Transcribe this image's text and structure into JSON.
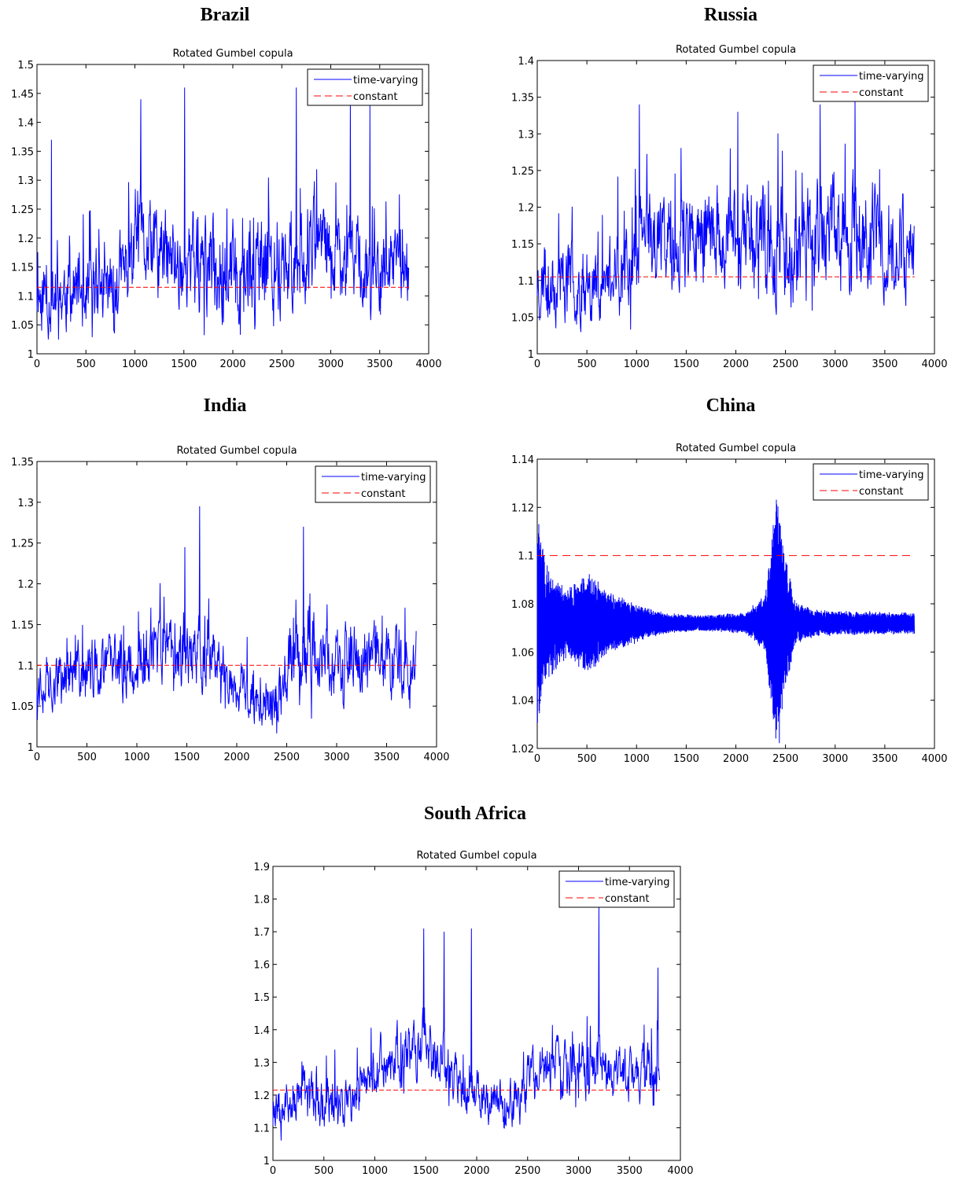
{
  "colors": {
    "time_varying": "#0000ff",
    "constant": "#ff0000",
    "axis": "#000000"
  },
  "chart_data": [
    {
      "country": "Brazil",
      "type": "line",
      "title": "Rotated Gumbel copula",
      "xlim": [
        0,
        4000
      ],
      "ylim": [
        1,
        1.5
      ],
      "xticks": [
        0,
        500,
        1000,
        1500,
        2000,
        2500,
        3000,
        3500,
        4000
      ],
      "yticks": [
        1,
        1.05,
        1.1,
        1.15,
        1.2,
        1.25,
        1.3,
        1.35,
        1.4,
        1.45,
        1.5
      ],
      "ytick_labels": [
        "1",
        "1.05",
        "1.1",
        "1.15",
        "1.2",
        "1.25",
        "1.3",
        "1.35",
        "1.4",
        "1.45",
        "1.5"
      ],
      "xtick_labels": [
        "0",
        "500",
        "1000",
        "1500",
        "2000",
        "2500",
        "3000",
        "3500",
        "4000"
      ],
      "legend_position": "top-right",
      "series": [
        {
          "name": "time-varying",
          "style": "solid",
          "n": 3800,
          "seed": 11,
          "segments": [
            [
              0,
              1.1,
              0.06
            ],
            [
              800,
              1.11,
              0.07
            ],
            [
              1000,
              1.18,
              0.07
            ],
            [
              1600,
              1.15,
              0.08
            ],
            [
              2300,
              1.14,
              0.08
            ],
            [
              2900,
              1.18,
              0.07
            ],
            [
              3400,
              1.15,
              0.07
            ],
            [
              3800,
              1.14,
              0.06
            ]
          ],
          "peaks": [
            [
              150,
              1.37
            ],
            [
              1060,
              1.44
            ],
            [
              1510,
              1.46
            ],
            [
              2650,
              1.46
            ],
            [
              3200,
              1.44
            ],
            [
              3400,
              1.43
            ]
          ]
        },
        {
          "name": "constant",
          "style": "dashed",
          "value": 1.115
        }
      ]
    },
    {
      "country": "Russia",
      "type": "line",
      "title": "Rotated Gumbel copula",
      "xlim": [
        0,
        4000
      ],
      "ylim": [
        1,
        1.4
      ],
      "xticks": [
        0,
        500,
        1000,
        1500,
        2000,
        2500,
        3000,
        3500,
        4000
      ],
      "yticks": [
        1,
        1.05,
        1.1,
        1.15,
        1.2,
        1.25,
        1.3,
        1.35,
        1.4
      ],
      "ytick_labels": [
        "1",
        "1.05",
        "1.1",
        "1.15",
        "1.2",
        "1.25",
        "1.3",
        "1.35",
        "1.4"
      ],
      "xtick_labels": [
        "0",
        "500",
        "1000",
        "1500",
        "2000",
        "2500",
        "3000",
        "3500",
        "4000"
      ],
      "legend_position": "top-right",
      "series": [
        {
          "name": "time-varying",
          "style": "solid",
          "n": 3800,
          "seed": 23,
          "segments": [
            [
              0,
              1.1,
              0.05
            ],
            [
              800,
              1.1,
              0.05
            ],
            [
              1000,
              1.15,
              0.06
            ],
            [
              1800,
              1.16,
              0.06
            ],
            [
              2400,
              1.15,
              0.07
            ],
            [
              3000,
              1.17,
              0.07
            ],
            [
              3800,
              1.15,
              0.06
            ]
          ],
          "peaks": [
            [
              1030,
              1.34
            ],
            [
              2020,
              1.33
            ],
            [
              2850,
              1.34
            ],
            [
              3200,
              1.35
            ]
          ]
        },
        {
          "name": "constant",
          "style": "dashed",
          "value": 1.105
        }
      ]
    },
    {
      "country": "India",
      "type": "line",
      "title": "Rotated Gumbel copula",
      "xlim": [
        0,
        4000
      ],
      "ylim": [
        1,
        1.35
      ],
      "xticks": [
        0,
        500,
        1000,
        1500,
        2000,
        2500,
        3000,
        3500,
        4000
      ],
      "yticks": [
        1,
        1.05,
        1.1,
        1.15,
        1.2,
        1.25,
        1.3,
        1.35
      ],
      "ytick_labels": [
        "1",
        "1.05",
        "1.1",
        "1.15",
        "1.2",
        "1.25",
        "1.3",
        "1.35"
      ],
      "xtick_labels": [
        "0",
        "500",
        "1000",
        "1500",
        "2000",
        "2500",
        "3000",
        "3500",
        "4000"
      ],
      "legend_position": "top-right",
      "series": [
        {
          "name": "time-varying",
          "style": "solid",
          "n": 3800,
          "seed": 37,
          "segments": [
            [
              0,
              1.08,
              0.03
            ],
            [
              1200,
              1.11,
              0.04
            ],
            [
              1700,
              1.11,
              0.04
            ],
            [
              2100,
              1.06,
              0.03
            ],
            [
              2400,
              1.05,
              0.03
            ],
            [
              2600,
              1.13,
              0.05
            ],
            [
              3000,
              1.1,
              0.04
            ],
            [
              3800,
              1.11,
              0.04
            ]
          ],
          "peaks": [
            [
              1630,
              1.295
            ],
            [
              2670,
              1.27
            ],
            [
              1480,
              1.245
            ]
          ]
        },
        {
          "name": "constant",
          "style": "dashed",
          "value": 1.1
        }
      ]
    },
    {
      "country": "China",
      "type": "line",
      "title": "Rotated Gumbel copula",
      "xlim": [
        0,
        4000
      ],
      "ylim": [
        1.02,
        1.14
      ],
      "xticks": [
        0,
        500,
        1000,
        1500,
        2000,
        2500,
        3000,
        3500,
        4000
      ],
      "yticks": [
        1.02,
        1.04,
        1.06,
        1.08,
        1.1,
        1.12,
        1.14
      ],
      "ytick_labels": [
        "1.02",
        "1.04",
        "1.06",
        "1.08",
        "1.1",
        "1.12",
        "1.14"
      ],
      "xtick_labels": [
        "0",
        "500",
        "1000",
        "1500",
        "2000",
        "2500",
        "3000",
        "3500",
        "4000"
      ],
      "legend_position": "top-right",
      "series": [
        {
          "name": "time-varying",
          "style": "solid",
          "n": 3800,
          "seed": 41,
          "kind": "oscillation",
          "center": 1.072,
          "envelope": [
            [
              0,
              0.04
            ],
            [
              100,
              0.022
            ],
            [
              300,
              0.013
            ],
            [
              500,
              0.02
            ],
            [
              700,
              0.012
            ],
            [
              1100,
              0.006
            ],
            [
              1300,
              0.004
            ],
            [
              1600,
              0.003
            ],
            [
              2100,
              0.004
            ],
            [
              2300,
              0.012
            ],
            [
              2420,
              0.052
            ],
            [
              2480,
              0.03
            ],
            [
              2600,
              0.008
            ],
            [
              2800,
              0.005
            ],
            [
              3800,
              0.004
            ]
          ]
        },
        {
          "name": "constant",
          "style": "dashed",
          "value": 1.1
        }
      ]
    },
    {
      "country": "South Africa",
      "type": "line",
      "title": "Rotated Gumbel copula",
      "xlim": [
        0,
        4000
      ],
      "ylim": [
        1,
        1.9
      ],
      "xticks": [
        0,
        500,
        1000,
        1500,
        2000,
        2500,
        3000,
        3500,
        4000
      ],
      "yticks": [
        1,
        1.1,
        1.2,
        1.3,
        1.4,
        1.5,
        1.6,
        1.7,
        1.8,
        1.9
      ],
      "ytick_labels": [
        "1",
        "1.1",
        "1.2",
        "1.3",
        "1.4",
        "1.5",
        "1.6",
        "1.7",
        "1.8",
        "1.9"
      ],
      "xtick_labels": [
        "0",
        "500",
        "1000",
        "1500",
        "2000",
        "2500",
        "3000",
        "3500",
        "4000"
      ],
      "legend_position": "top-right",
      "series": [
        {
          "name": "time-varying",
          "style": "solid",
          "n": 3800,
          "seed": 53,
          "segments": [
            [
              0,
              1.18,
              0.07
            ],
            [
              800,
              1.18,
              0.07
            ],
            [
              1000,
              1.3,
              0.08
            ],
            [
              1500,
              1.35,
              0.09
            ],
            [
              1800,
              1.25,
              0.08
            ],
            [
              2300,
              1.15,
              0.07
            ],
            [
              2600,
              1.27,
              0.08
            ],
            [
              3200,
              1.28,
              0.08
            ],
            [
              3800,
              1.25,
              0.08
            ]
          ],
          "peaks": [
            [
              1480,
              1.71
            ],
            [
              1950,
              1.71
            ],
            [
              1680,
              1.7
            ],
            [
              3200,
              1.78
            ],
            [
              3780,
              1.59
            ]
          ]
        },
        {
          "name": "constant",
          "style": "dashed",
          "value": 1.215
        }
      ]
    }
  ]
}
